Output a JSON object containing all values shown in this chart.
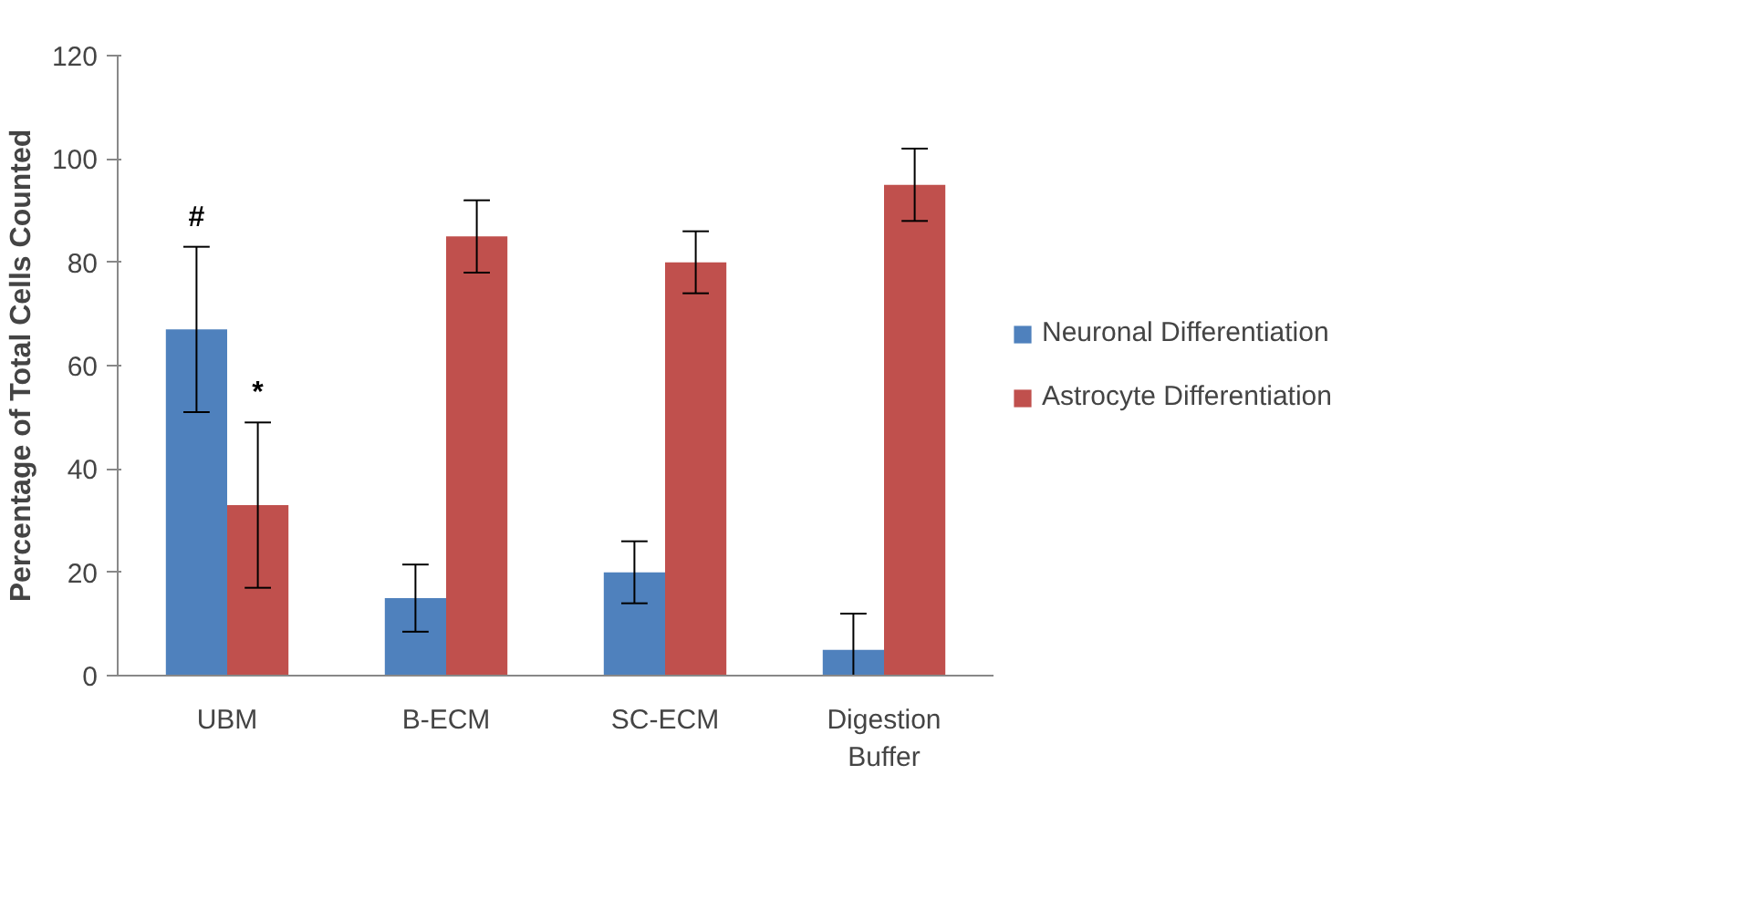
{
  "chart_data": {
    "type": "bar",
    "ylabel": "Percentage of Total Cells Counted",
    "categories": [
      "UBM",
      "B-ECM",
      "SC-ECM",
      "Digestion Buffer"
    ],
    "series": [
      {
        "name": "Neuronal Differentiation",
        "color": "#4f81bd",
        "values": [
          67,
          15,
          20,
          5
        ],
        "errors": [
          16,
          6.5,
          6,
          [
            0,
            12
          ]
        ]
      },
      {
        "name": "Astrocyte Differentiation",
        "color": "#c0504d",
        "values": [
          33,
          85,
          80,
          95
        ],
        "errors": [
          16,
          7,
          6,
          7
        ]
      }
    ],
    "ylim": [
      0,
      120
    ],
    "yticks": [
      0,
      20,
      40,
      60,
      80,
      100,
      120
    ],
    "grid": false,
    "legend": "right",
    "annotations": [
      "#",
      "*"
    ]
  }
}
